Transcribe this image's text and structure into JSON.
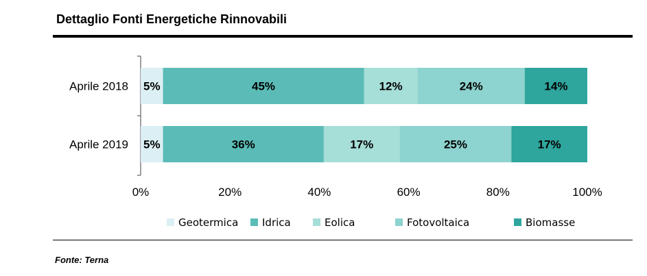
{
  "title": "Dettaglio Fonti Energetiche Rinnovabili",
  "source": "Fonte: Terna",
  "chart_data": {
    "type": "bar",
    "orientation": "horizontal",
    "stacked": true,
    "percent_stacked": true,
    "categories": [
      "Aprile 2018",
      "Aprile 2019"
    ],
    "series": [
      {
        "name": "Geotermica",
        "values": [
          5,
          5
        ],
        "labels": [
          "5%",
          "5%"
        ],
        "color": "#dbeff4"
      },
      {
        "name": "Idrica",
        "values": [
          45,
          36
        ],
        "labels": [
          "45%",
          "36%"
        ],
        "color": "#5bbcb7"
      },
      {
        "name": "Eolica",
        "values": [
          12,
          17
        ],
        "labels": [
          "12%",
          "17%"
        ],
        "color": "#a6ded8"
      },
      {
        "name": "Fotovoltaica",
        "values": [
          24,
          25
        ],
        "labels": [
          "24%",
          "25%"
        ],
        "color": "#8dd3cf"
      },
      {
        "name": "Biomasse",
        "values": [
          14,
          17
        ],
        "labels": [
          "14%",
          "17%"
        ],
        "color": "#2ea59d"
      }
    ],
    "xlim": [
      0,
      100
    ],
    "xticks": [
      "0%",
      "20%",
      "40%",
      "60%",
      "80%",
      "100%"
    ],
    "grid": false,
    "legend_position": "bottom"
  }
}
